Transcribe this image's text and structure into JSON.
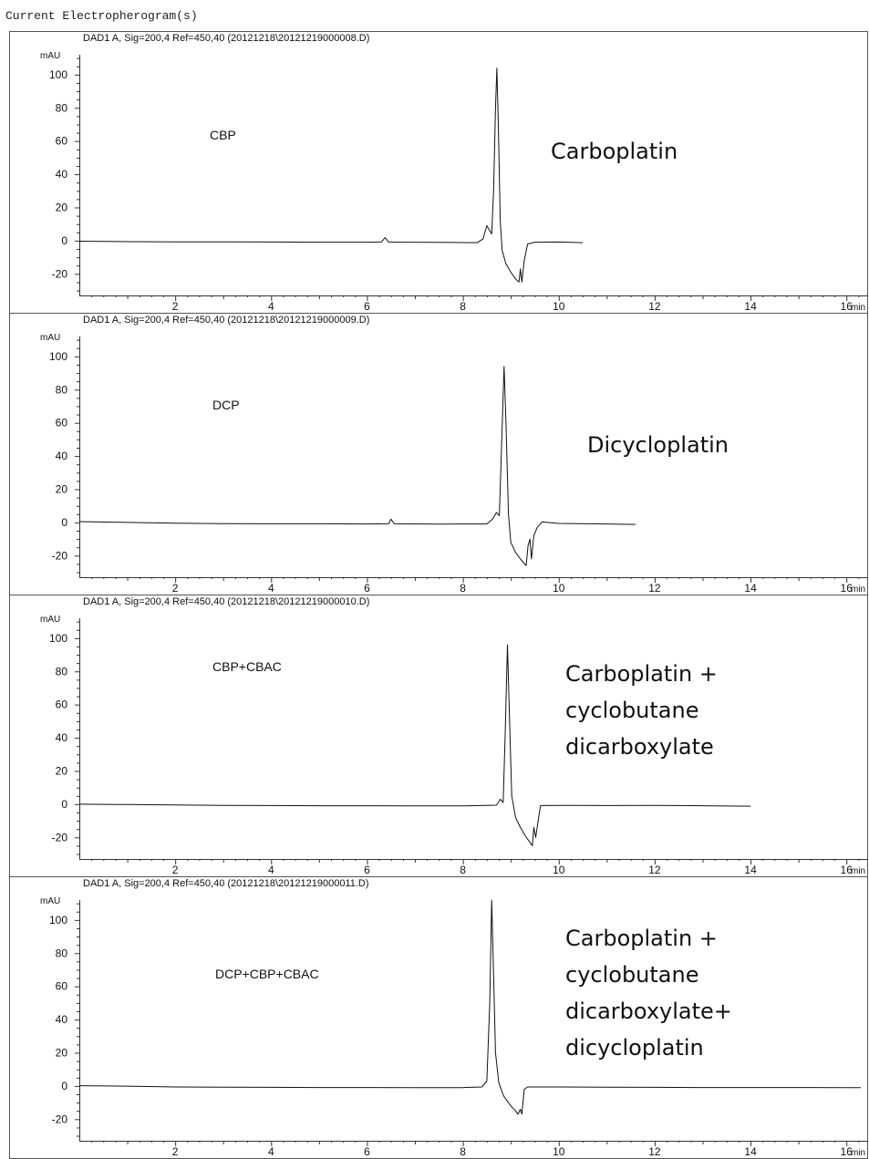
{
  "page_title": "Current Electropherogram(s)",
  "chart_data": [
    {
      "type": "line",
      "title": "DAD1 A, Sig=200,4 Ref=450,40 (20121218\\20121219000008.D)",
      "ylabel": "mAU",
      "xlabel": "min",
      "xlim": [
        0,
        16.3
      ],
      "ylim": [
        -33,
        112
      ],
      "yticks": [
        -20,
        0,
        20,
        40,
        60,
        80,
        100
      ],
      "xticks": [
        2,
        4,
        6,
        8,
        10,
        12,
        14,
        16
      ],
      "sample_label": "CBP",
      "annotation": [
        "Carboplatin"
      ],
      "series": [
        {
          "points": [
            [
              0,
              -0.3
            ],
            [
              1,
              -0.6
            ],
            [
              2,
              -0.7
            ],
            [
              3,
              -0.7
            ],
            [
              4,
              -0.8
            ],
            [
              5,
              -0.9
            ],
            [
              6,
              -0.9
            ],
            [
              6.3,
              -0.8
            ],
            [
              6.38,
              1.8
            ],
            [
              6.45,
              -0.8
            ],
            [
              6.7,
              -0.9
            ],
            [
              7.5,
              -1
            ],
            [
              8.3,
              -1.2
            ],
            [
              8.42,
              1
            ],
            [
              8.5,
              9
            ],
            [
              8.56,
              6
            ],
            [
              8.6,
              4
            ],
            [
              8.64,
              30
            ],
            [
              8.68,
              80
            ],
            [
              8.71,
              104
            ],
            [
              8.74,
              70
            ],
            [
              8.78,
              12
            ],
            [
              8.82,
              -6
            ],
            [
              8.9,
              -14
            ],
            [
              9.0,
              -19
            ],
            [
              9.1,
              -23
            ],
            [
              9.17,
              -25
            ],
            [
              9.2,
              -17
            ],
            [
              9.23,
              -25
            ],
            [
              9.28,
              -12
            ],
            [
              9.35,
              -2
            ],
            [
              9.5,
              -0.9
            ],
            [
              10,
              -0.8
            ],
            [
              10.5,
              -1.2
            ]
          ]
        }
      ]
    },
    {
      "type": "line",
      "title": "DAD1 A, Sig=200,4 Ref=450,40 (20121218\\20121219000009.D)",
      "ylabel": "mAU",
      "xlabel": "min",
      "xlim": [
        0,
        16.3
      ],
      "ylim": [
        -33,
        112
      ],
      "yticks": [
        -20,
        0,
        20,
        40,
        60,
        80,
        100
      ],
      "xticks": [
        2,
        4,
        6,
        8,
        10,
        12,
        14,
        16
      ],
      "sample_label": "DCP",
      "annotation": [
        "Dicycloplatin"
      ],
      "series": [
        {
          "points": [
            [
              0,
              0.5
            ],
            [
              1,
              0
            ],
            [
              2,
              -0.5
            ],
            [
              3,
              -0.7
            ],
            [
              4,
              -0.8
            ],
            [
              5,
              -0.8
            ],
            [
              6,
              -0.9
            ],
            [
              6.45,
              -0.8
            ],
            [
              6.5,
              2
            ],
            [
              6.57,
              -0.8
            ],
            [
              7.5,
              -1
            ],
            [
              8.5,
              -0.9
            ],
            [
              8.62,
              2
            ],
            [
              8.7,
              6
            ],
            [
              8.76,
              4
            ],
            [
              8.8,
              40
            ],
            [
              8.86,
              94
            ],
            [
              8.9,
              60
            ],
            [
              8.95,
              5
            ],
            [
              9.0,
              -12
            ],
            [
              9.1,
              -18
            ],
            [
              9.2,
              -22
            ],
            [
              9.32,
              -26
            ],
            [
              9.36,
              -14
            ],
            [
              9.4,
              -10
            ],
            [
              9.43,
              -22
            ],
            [
              9.48,
              -8
            ],
            [
              9.55,
              -3
            ],
            [
              9.65,
              0.3
            ],
            [
              10,
              -0.6
            ],
            [
              11,
              -0.9
            ],
            [
              11.6,
              -1.2
            ]
          ]
        }
      ]
    },
    {
      "type": "line",
      "title": "DAD1 A, Sig=200,4 Ref=450,40 (20121218\\20121219000010.D)",
      "ylabel": "mAU",
      "xlabel": "min",
      "xlim": [
        0,
        16.3
      ],
      "ylim": [
        -33,
        112
      ],
      "yticks": [
        -20,
        0,
        20,
        40,
        60,
        80,
        100
      ],
      "xticks": [
        2,
        4,
        6,
        8,
        10,
        12,
        14,
        16
      ],
      "sample_label": "CBP+CBAC",
      "annotation": [
        "Carboplatin +",
        "cyclobutane",
        "dicarboxylate"
      ],
      "series": [
        {
          "points": [
            [
              0,
              0
            ],
            [
              1,
              -0.2
            ],
            [
              2,
              -0.5
            ],
            [
              3,
              -0.7
            ],
            [
              4,
              -0.8
            ],
            [
              5,
              -0.9
            ],
            [
              6,
              -0.9
            ],
            [
              7,
              -1
            ],
            [
              8,
              -1
            ],
            [
              8.7,
              -0.6
            ],
            [
              8.78,
              3
            ],
            [
              8.84,
              1
            ],
            [
              8.88,
              40
            ],
            [
              8.93,
              96
            ],
            [
              8.97,
              55
            ],
            [
              9.02,
              5
            ],
            [
              9.1,
              -8
            ],
            [
              9.2,
              -14
            ],
            [
              9.3,
              -19
            ],
            [
              9.4,
              -23
            ],
            [
              9.45,
              -25
            ],
            [
              9.48,
              -14
            ],
            [
              9.52,
              -20
            ],
            [
              9.58,
              -8
            ],
            [
              9.62,
              -0.8
            ],
            [
              10,
              -0.7
            ],
            [
              11,
              -0.8
            ],
            [
              12,
              -0.7
            ],
            [
              13,
              -0.9
            ],
            [
              14,
              -1.2
            ]
          ]
        }
      ]
    },
    {
      "type": "line",
      "title": "DAD1 A, Sig=200,4 Ref=450,40 (20121218\\20121219000011.D)",
      "ylabel": "mAU",
      "xlabel": "min",
      "xlim": [
        0,
        16.3
      ],
      "ylim": [
        -33,
        112
      ],
      "yticks": [
        -20,
        0,
        20,
        40,
        60,
        80,
        100
      ],
      "xticks": [
        2,
        4,
        6,
        8,
        10,
        12,
        14,
        16
      ],
      "sample_label": "DCP+CBP+CBAC",
      "annotation": [
        "Carboplatin +",
        "cyclobutane",
        "dicarboxylate+",
        "dicycloplatin"
      ],
      "series": [
        {
          "points": [
            [
              0,
              0.2
            ],
            [
              1,
              -0.1
            ],
            [
              2,
              -0.6
            ],
            [
              3,
              -0.7
            ],
            [
              4,
              -0.8
            ],
            [
              5,
              -0.9
            ],
            [
              6,
              -0.9
            ],
            [
              7,
              -1
            ],
            [
              8,
              -1
            ],
            [
              8.4,
              -0.6
            ],
            [
              8.5,
              3
            ],
            [
              8.56,
              50
            ],
            [
              8.6,
              112
            ],
            [
              8.63,
              80
            ],
            [
              8.68,
              20
            ],
            [
              8.75,
              2
            ],
            [
              8.85,
              -6
            ],
            [
              9.0,
              -12
            ],
            [
              9.1,
              -15
            ],
            [
              9.15,
              -17
            ],
            [
              9.2,
              -14
            ],
            [
              9.23,
              -17
            ],
            [
              9.28,
              -2
            ],
            [
              9.35,
              -0.6
            ],
            [
              10,
              -0.6
            ],
            [
              11,
              -0.7
            ],
            [
              12,
              -0.8
            ],
            [
              13,
              -0.9
            ],
            [
              14,
              -0.9
            ],
            [
              15,
              -0.9
            ],
            [
              16,
              -1
            ],
            [
              16.3,
              -1
            ]
          ]
        }
      ]
    }
  ]
}
